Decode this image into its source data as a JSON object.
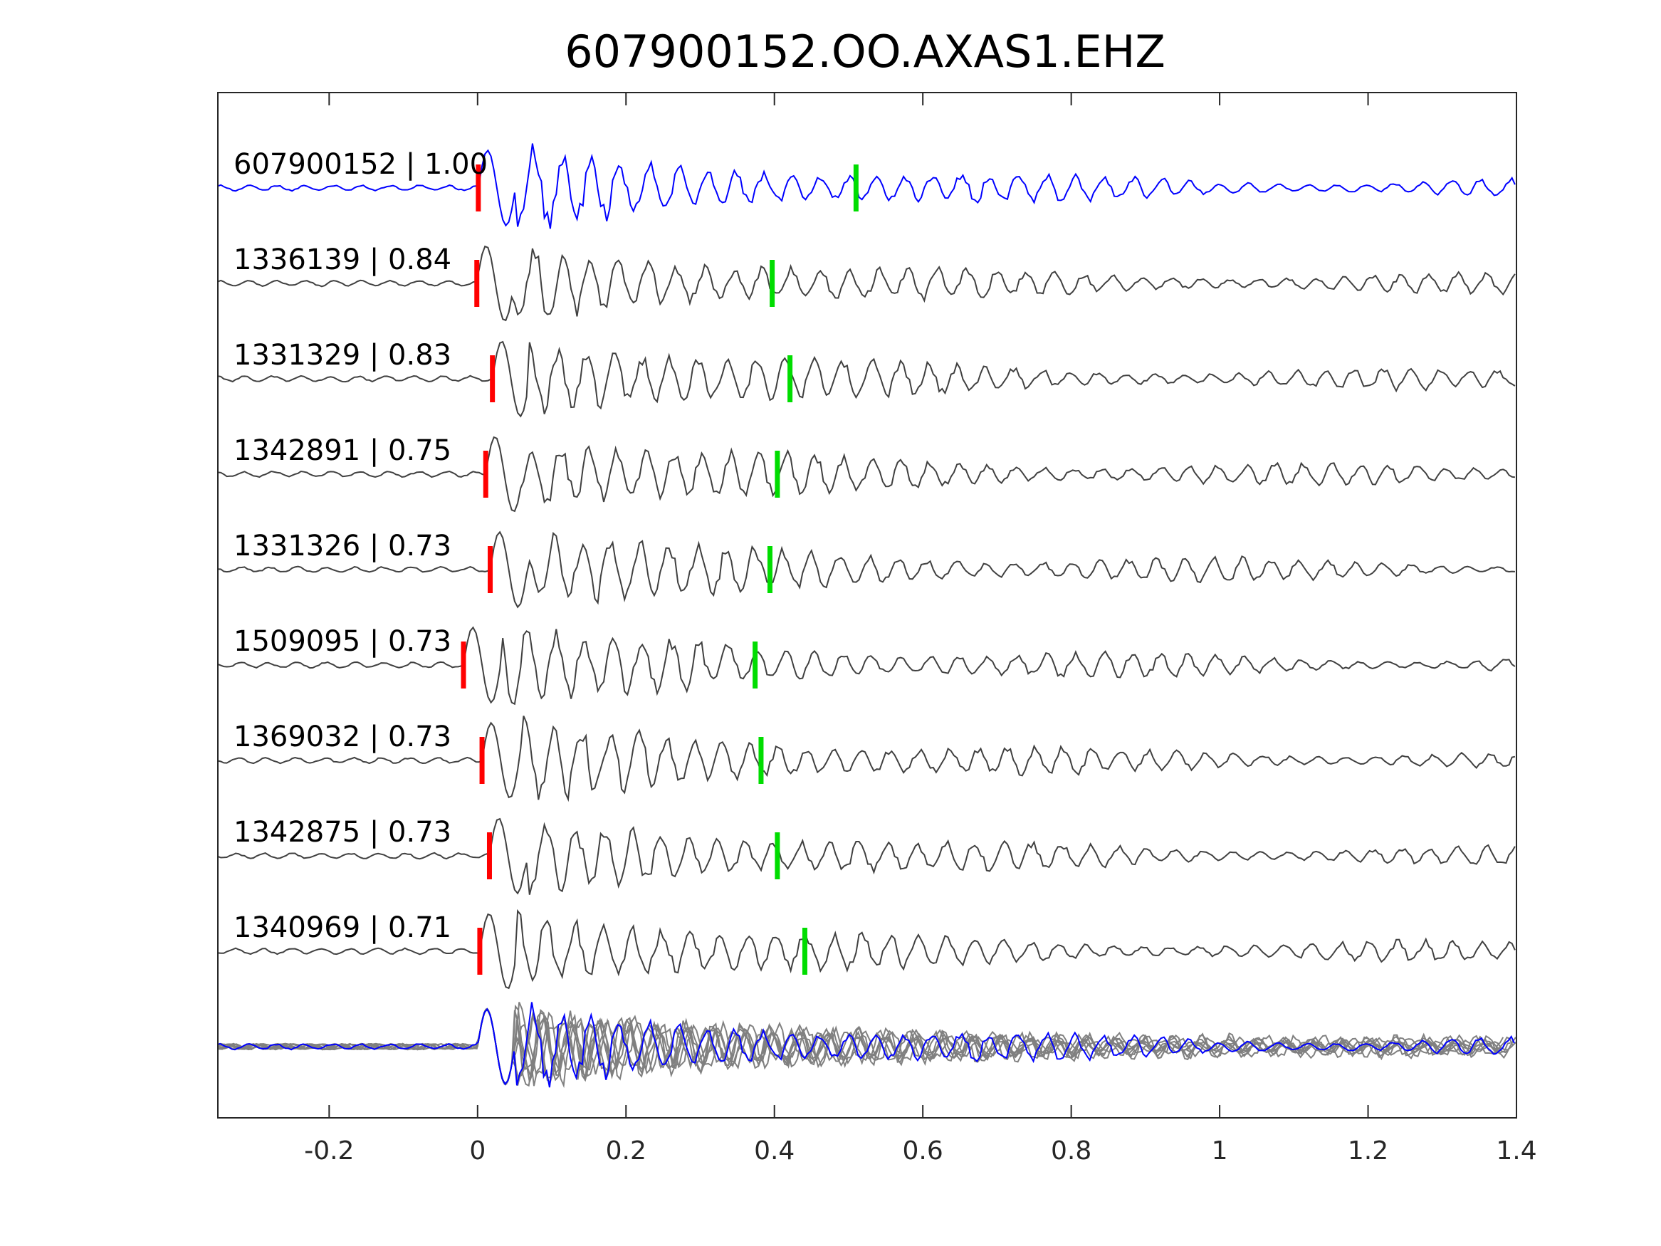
{
  "chart_data": {
    "type": "line",
    "title": "607900152.OO.AXAS1.EHZ",
    "xlabel": "",
    "ylabel": "",
    "xlim": [
      -0.35,
      1.4
    ],
    "xticks": [
      -0.2,
      0,
      0.2,
      0.4,
      0.6,
      0.8,
      1,
      1.2,
      1.4
    ],
    "xtick_labels": [
      "-0.2",
      "0",
      "0.2",
      "0.4",
      "0.6",
      "0.8",
      "1",
      "1.2",
      "1.4"
    ],
    "grid": false,
    "colors": {
      "reference": "#0000ff",
      "template": "#404040",
      "stack": "#808080",
      "p_pick": "#ff0000",
      "s_pick": "#00dd00"
    },
    "traces": [
      {
        "label": "607900152 | 1.00",
        "id": "607900152",
        "cc": 1.0,
        "p_pick": 0.001,
        "s_pick": 0.51,
        "reference": true
      },
      {
        "label": "1336139 | 0.84",
        "id": "1336139",
        "cc": 0.84,
        "p_pick": -0.001,
        "s_pick": 0.397
      },
      {
        "label": "1331329 | 0.83",
        "id": "1331329",
        "cc": 0.83,
        "p_pick": 0.02,
        "s_pick": 0.421
      },
      {
        "label": "1342891 | 0.75",
        "id": "1342891",
        "cc": 0.75,
        "p_pick": 0.011,
        "s_pick": 0.404
      },
      {
        "label": "1331326 | 0.73",
        "id": "1331326",
        "cc": 0.73,
        "p_pick": 0.017,
        "s_pick": 0.394
      },
      {
        "label": "1509095 | 0.73",
        "id": "1509095",
        "cc": 0.73,
        "p_pick": -0.019,
        "s_pick": 0.374
      },
      {
        "label": "1369032 | 0.73",
        "id": "1369032",
        "cc": 0.73,
        "p_pick": 0.006,
        "s_pick": 0.382
      },
      {
        "label": "1342875 | 0.73",
        "id": "1342875",
        "cc": 0.73,
        "p_pick": 0.016,
        "s_pick": 0.404
      },
      {
        "label": "1340969 | 0.71",
        "id": "1340969",
        "cc": 0.71,
        "p_pick": 0.003,
        "s_pick": 0.441
      }
    ]
  }
}
